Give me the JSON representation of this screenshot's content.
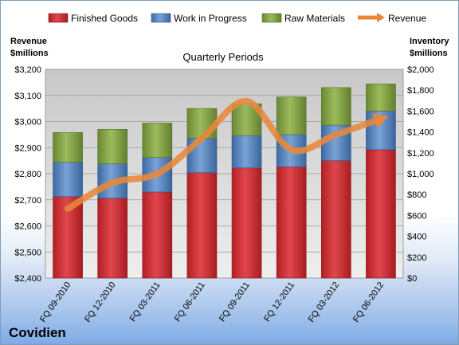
{
  "chart_data": {
    "type": "bar",
    "title": "Quarterly Periods",
    "company": "Covidien",
    "categories": [
      "FQ 09-2010",
      "FQ 12-2010",
      "FQ 03-2011",
      "FQ 06-2011",
      "FQ 09-2011",
      "FQ 12-2011",
      "FQ 03-2012",
      "FQ 06-2012"
    ],
    "ylabel_left": [
      "Revenue",
      "$millions"
    ],
    "ylabel_right": [
      "Inventory",
      "$millions"
    ],
    "ylim_left": [
      2400,
      3200
    ],
    "ylim_right": [
      0,
      2000
    ],
    "left_ticks": [
      "$2,400",
      "$2,500",
      "$2,600",
      "$2,700",
      "$2,800",
      "$2,900",
      "$3,000",
      "$3,100",
      "$3,200"
    ],
    "right_ticks": [
      "$0",
      "$200",
      "$400",
      "$600",
      "$800",
      "$1,000",
      "$1,200",
      "$1,400",
      "$1,600",
      "$1,800",
      "$2,000"
    ],
    "stacked_series": [
      {
        "name": "Finished Goods",
        "color": "#c0282e",
        "values": [
          780,
          765,
          825,
          1010,
          1055,
          1065,
          1125,
          1230
        ]
      },
      {
        "name": "Work in Progress",
        "color": "#4f81bd",
        "values": [
          330,
          330,
          330,
          330,
          310,
          310,
          340,
          370
        ]
      },
      {
        "name": "Raw Materials",
        "color": "#77933c",
        "values": [
          285,
          330,
          330,
          285,
          305,
          360,
          360,
          260
        ]
      }
    ],
    "line_series": {
      "name": "Revenue",
      "axis": "left",
      "color": "#e8873a",
      "values": [
        2666,
        2765,
        2800,
        2936,
        3078,
        2892,
        2950,
        3010
      ]
    },
    "legend_position": "top",
    "grid": true
  }
}
